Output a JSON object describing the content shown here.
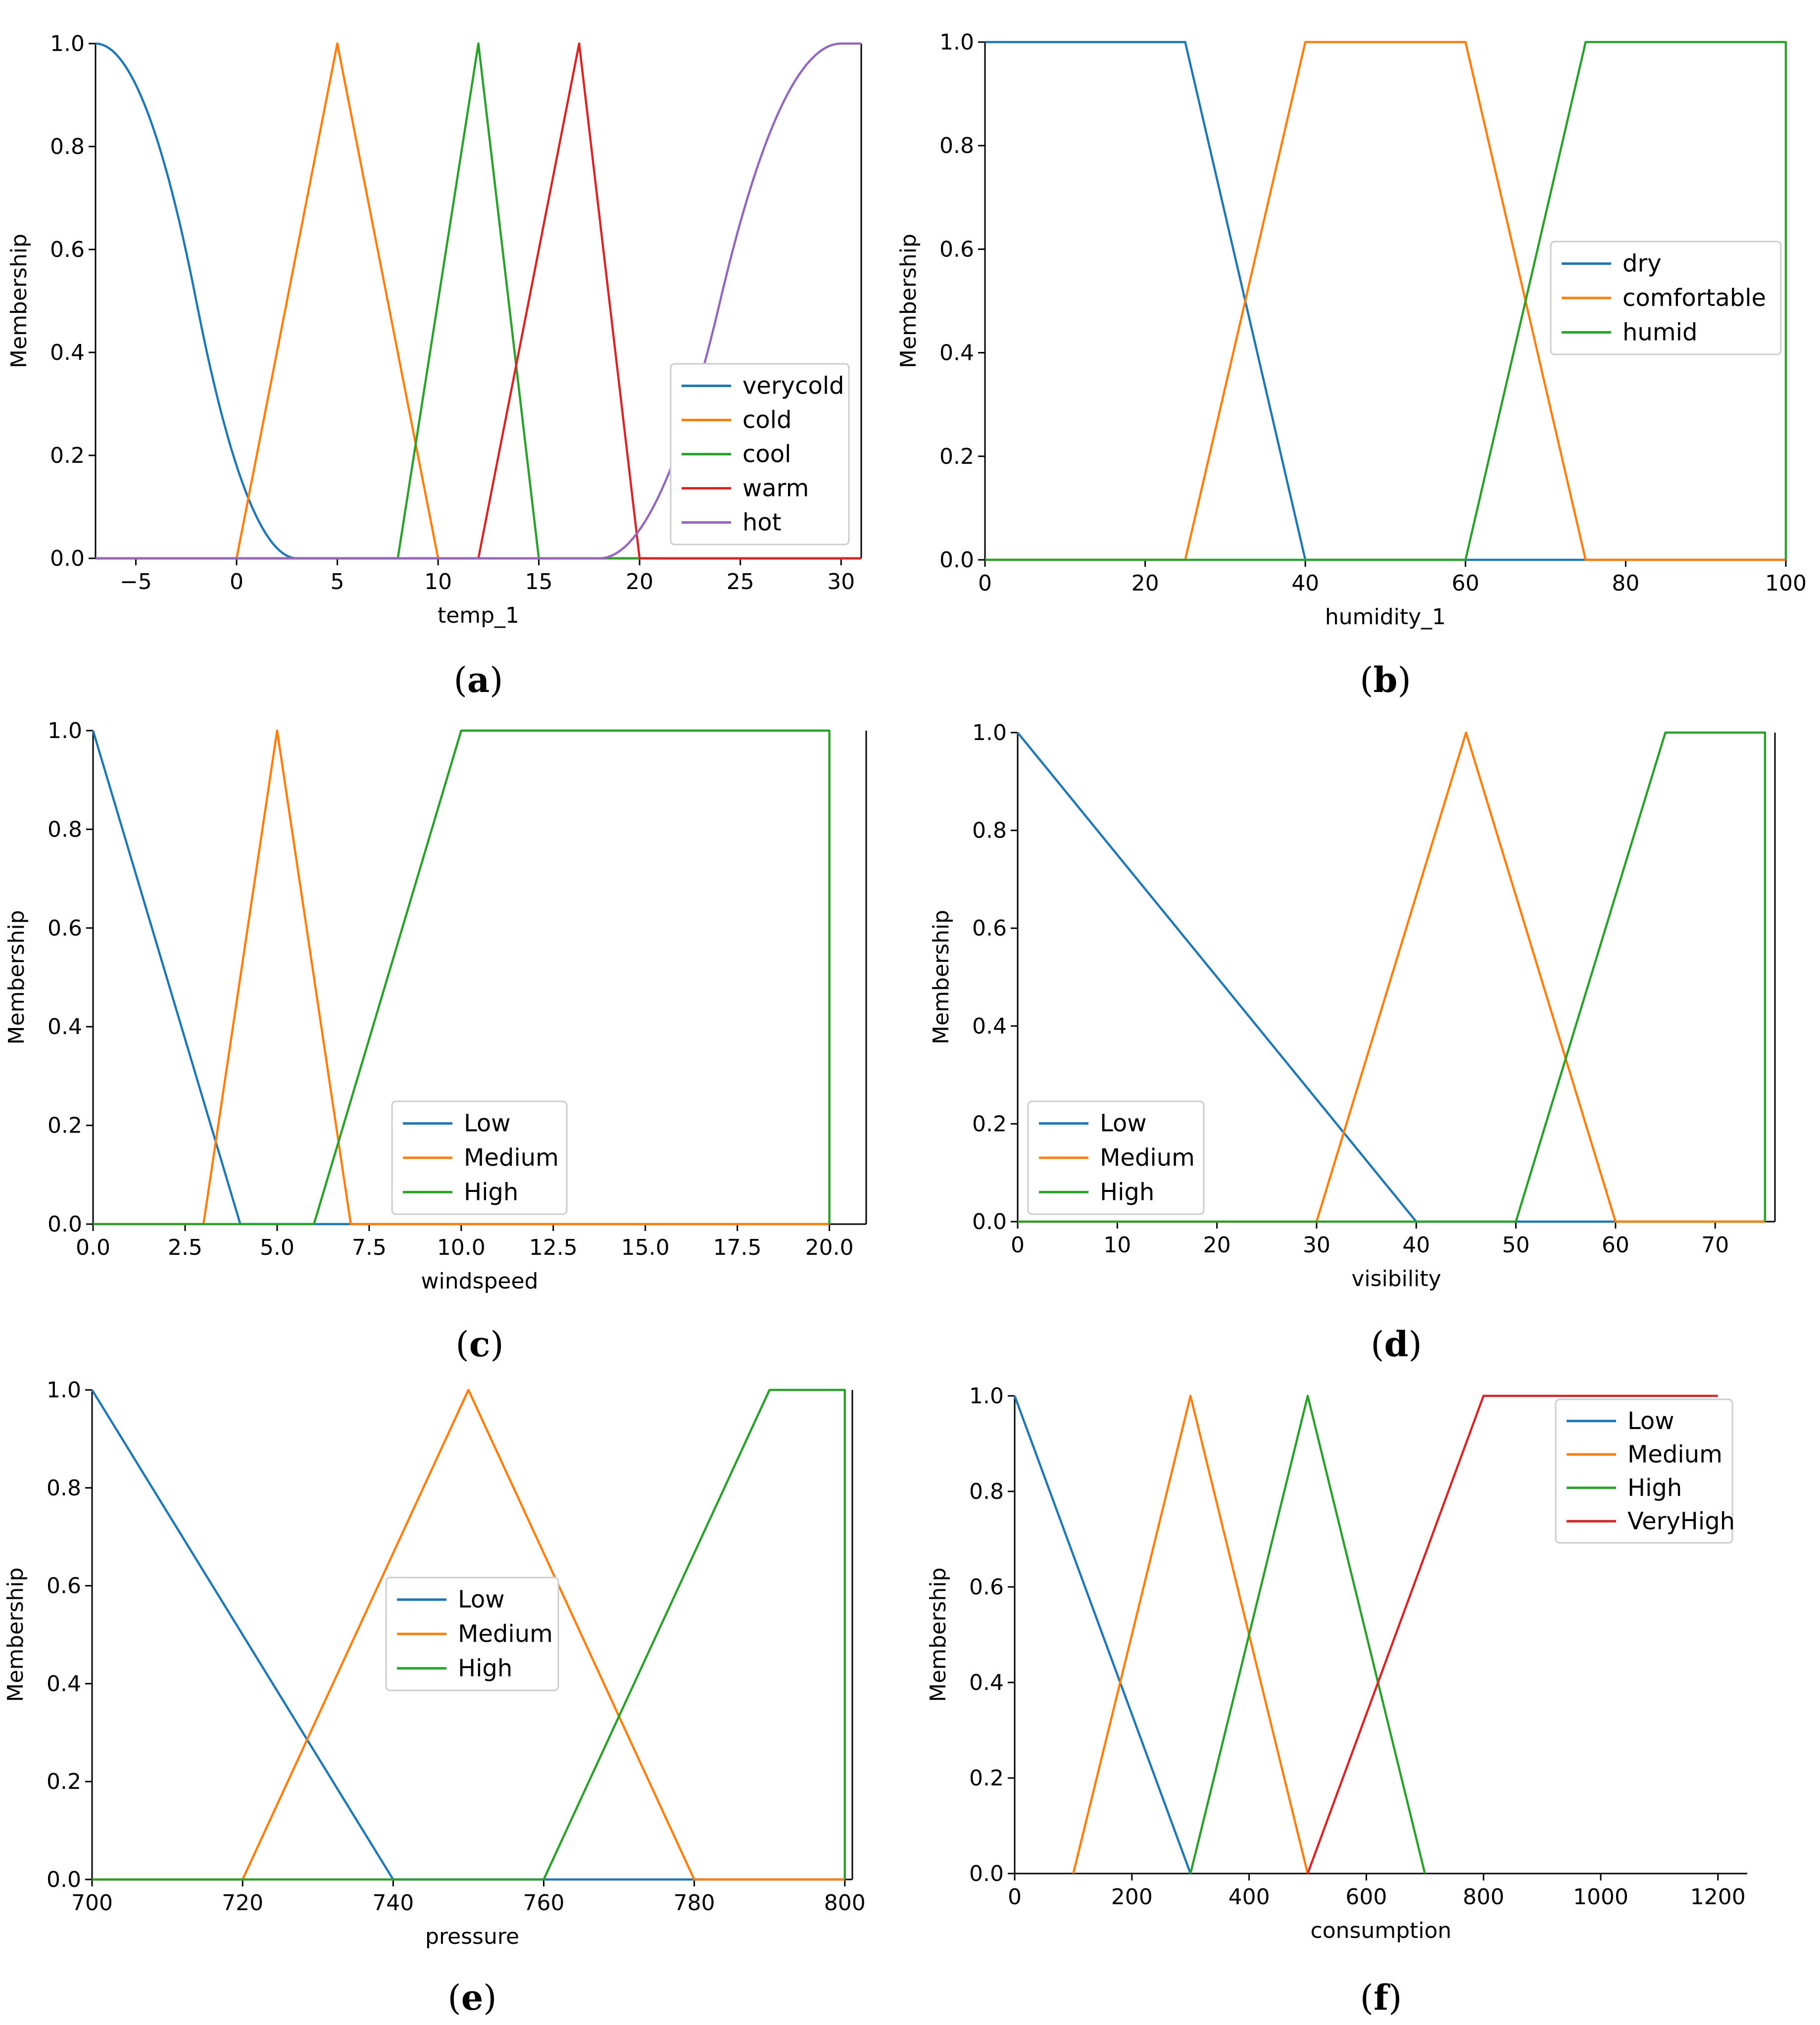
{
  "colors": {
    "blue": "#1f77b4",
    "orange": "#ff7f0e",
    "green": "#2ca02c",
    "red": "#d62728",
    "purple": "#9467bd"
  },
  "chart_data": [
    {
      "type": "line",
      "caption": {
        "open": "(",
        "letter": "a",
        "close": ")"
      },
      "xlabel": "temp_1",
      "ylabel": "Membership",
      "xlim": [
        -7,
        31
      ],
      "ylim": [
        0,
        1
      ],
      "xticks": [
        -5,
        0,
        5,
        10,
        15,
        20,
        25,
        30
      ],
      "xtick_labels": [
        "−5",
        "0",
        "5",
        "10",
        "15",
        "20",
        "25",
        "30"
      ],
      "yticks": [
        0,
        0.2,
        0.4,
        0.6,
        0.8,
        1.0
      ],
      "ytick_labels": [
        "0.0",
        "0.2",
        "0.4",
        "0.6",
        "0.8",
        "1.0"
      ],
      "legend_position": "lower-right",
      "series": [
        {
          "name": "verycold",
          "color": "blue",
          "kind": "zmf",
          "params": [
            -7,
            3
          ]
        },
        {
          "name": "cold",
          "color": "orange",
          "kind": "points",
          "x": [
            -7,
            0,
            5,
            10,
            31
          ],
          "y": [
            0,
            0,
            1,
            0,
            0
          ]
        },
        {
          "name": "cool",
          "color": "green",
          "kind": "points",
          "x": [
            -7,
            8,
            12,
            15,
            31
          ],
          "y": [
            0,
            0,
            1,
            0,
            0
          ]
        },
        {
          "name": "warm",
          "color": "red",
          "kind": "points",
          "x": [
            -7,
            12,
            17,
            20,
            31
          ],
          "y": [
            0,
            0,
            1,
            0,
            0
          ]
        },
        {
          "name": "hot",
          "color": "purple",
          "kind": "smf",
          "params": [
            18,
            30
          ]
        }
      ]
    },
    {
      "type": "line",
      "caption": {
        "open": "(",
        "letter": "b",
        "close": ")"
      },
      "xlabel": "humidity_1",
      "ylabel": "Membership",
      "xlim": [
        0,
        100
      ],
      "ylim": [
        0,
        1
      ],
      "xticks": [
        0,
        20,
        40,
        60,
        80,
        100
      ],
      "xtick_labels": [
        "0",
        "20",
        "40",
        "60",
        "80",
        "100"
      ],
      "yticks": [
        0,
        0.2,
        0.4,
        0.6,
        0.8,
        1.0
      ],
      "ytick_labels": [
        "0.0",
        "0.2",
        "0.4",
        "0.6",
        "0.8",
        "1.0"
      ],
      "legend_position": "center-right",
      "series": [
        {
          "name": "dry",
          "color": "blue",
          "kind": "points",
          "x": [
            0,
            25,
            40,
            100
          ],
          "y": [
            1,
            1,
            0,
            0
          ]
        },
        {
          "name": "comfortable",
          "color": "orange",
          "kind": "points",
          "x": [
            0,
            25,
            40,
            60,
            75,
            100
          ],
          "y": [
            0,
            0,
            1,
            1,
            0,
            0
          ]
        },
        {
          "name": "humid",
          "color": "green",
          "kind": "points",
          "x": [
            0,
            60,
            75,
            100,
            100
          ],
          "y": [
            0,
            0,
            1,
            1,
            0
          ]
        }
      ]
    },
    {
      "type": "line",
      "caption": {
        "open": "(",
        "letter": "c",
        "close": ")"
      },
      "xlabel": "windspeed",
      "ylabel": "Membership",
      "xlim": [
        0,
        21
      ],
      "ylim": [
        0,
        1
      ],
      "xticks": [
        0,
        2.5,
        5,
        7.5,
        10,
        12.5,
        15,
        17.5,
        20
      ],
      "xtick_labels": [
        "0.0",
        "2.5",
        "5.0",
        "7.5",
        "10.0",
        "12.5",
        "15.0",
        "17.5",
        "20.0"
      ],
      "yticks": [
        0,
        0.2,
        0.4,
        0.6,
        0.8,
        1.0
      ],
      "ytick_labels": [
        "0.0",
        "0.2",
        "0.4",
        "0.6",
        "0.8",
        "1.0"
      ],
      "legend_position": "lower-center",
      "series": [
        {
          "name": "Low",
          "color": "blue",
          "kind": "points",
          "x": [
            0,
            4,
            20
          ],
          "y": [
            1,
            0,
            0
          ]
        },
        {
          "name": "Medium",
          "color": "orange",
          "kind": "points",
          "x": [
            0,
            3,
            5,
            7,
            20
          ],
          "y": [
            0,
            0,
            1,
            0,
            0
          ]
        },
        {
          "name": "High",
          "color": "green",
          "kind": "points",
          "x": [
            0,
            6,
            10,
            20,
            20
          ],
          "y": [
            0,
            0,
            1,
            1,
            0
          ]
        }
      ]
    },
    {
      "type": "line",
      "caption": {
        "open": "(",
        "letter": "d",
        "close": ")"
      },
      "xlabel": "visibility",
      "ylabel": "Membership",
      "xlim": [
        0,
        76
      ],
      "ylim": [
        0,
        1
      ],
      "xticks": [
        0,
        10,
        20,
        30,
        40,
        50,
        60,
        70
      ],
      "xtick_labels": [
        "0",
        "10",
        "20",
        "30",
        "40",
        "50",
        "60",
        "70"
      ],
      "yticks": [
        0,
        0.2,
        0.4,
        0.6,
        0.8,
        1.0
      ],
      "ytick_labels": [
        "0.0",
        "0.2",
        "0.4",
        "0.6",
        "0.8",
        "1.0"
      ],
      "legend_position": "lower-left",
      "series": [
        {
          "name": "Low",
          "color": "blue",
          "kind": "points",
          "x": [
            0,
            40,
            75
          ],
          "y": [
            1,
            0,
            0
          ]
        },
        {
          "name": "Medium",
          "color": "orange",
          "kind": "points",
          "x": [
            0,
            30,
            45,
            60,
            75
          ],
          "y": [
            0,
            0,
            1,
            0,
            0
          ]
        },
        {
          "name": "High",
          "color": "green",
          "kind": "points",
          "x": [
            0,
            50,
            65,
            75,
            75
          ],
          "y": [
            0,
            0,
            1,
            1,
            0
          ]
        }
      ]
    },
    {
      "type": "line",
      "caption": {
        "open": "(",
        "letter": "e",
        "close": ")"
      },
      "xlabel": "pressure",
      "ylabel": "Membership",
      "xlim": [
        700,
        801
      ],
      "ylim": [
        0,
        1
      ],
      "xticks": [
        700,
        720,
        740,
        760,
        780,
        800
      ],
      "xtick_labels": [
        "700",
        "720",
        "740",
        "760",
        "780",
        "800"
      ],
      "yticks": [
        0,
        0.2,
        0.4,
        0.6,
        0.8,
        1.0
      ],
      "ytick_labels": [
        "0.0",
        "0.2",
        "0.4",
        "0.6",
        "0.8",
        "1.0"
      ],
      "legend_position": "center",
      "series": [
        {
          "name": "Low",
          "color": "blue",
          "kind": "points",
          "x": [
            700,
            740,
            800
          ],
          "y": [
            1,
            0,
            0
          ]
        },
        {
          "name": "Medium",
          "color": "orange",
          "kind": "points",
          "x": [
            700,
            720,
            750,
            780,
            800
          ],
          "y": [
            0,
            0,
            1,
            0,
            0
          ]
        },
        {
          "name": "High",
          "color": "green",
          "kind": "points",
          "x": [
            700,
            760,
            790,
            800,
            800
          ],
          "y": [
            0,
            0,
            1,
            1,
            0
          ]
        }
      ]
    },
    {
      "type": "line",
      "caption": {
        "open": "(",
        "letter": "f",
        "close": ")"
      },
      "xlabel": "consumption",
      "ylabel": "Membership",
      "xlim": [
        0,
        1250
      ],
      "ylim": [
        0,
        1
      ],
      "xticks": [
        0,
        200,
        400,
        600,
        800,
        1000,
        1200
      ],
      "xtick_labels": [
        "0",
        "200",
        "400",
        "600",
        "800",
        "1000",
        "1200"
      ],
      "yticks": [
        0,
        0.2,
        0.4,
        0.6,
        0.8,
        1.0
      ],
      "ytick_labels": [
        "0.0",
        "0.2",
        "0.4",
        "0.6",
        "0.8",
        "1.0"
      ],
      "legend_position": "upper-right",
      "open_axes": true,
      "series": [
        {
          "name": "Low",
          "color": "blue",
          "kind": "points",
          "x": [
            0,
            300
          ],
          "y": [
            1,
            0
          ]
        },
        {
          "name": "Medium",
          "color": "orange",
          "kind": "points",
          "x": [
            100,
            300,
            500
          ],
          "y": [
            0,
            1,
            0
          ]
        },
        {
          "name": "High",
          "color": "green",
          "kind": "points",
          "x": [
            300,
            500,
            700
          ],
          "y": [
            0,
            1,
            0
          ]
        },
        {
          "name": "VeryHigh",
          "color": "red",
          "kind": "points",
          "x": [
            500,
            800,
            1200
          ],
          "y": [
            0,
            1,
            1
          ]
        }
      ]
    }
  ]
}
